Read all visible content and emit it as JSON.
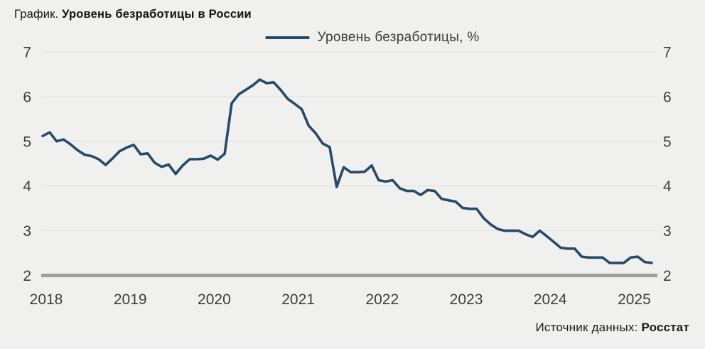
{
  "title": {
    "prefix": "График.",
    "main": "Уровень безработицы в России"
  },
  "legend": {
    "label": "Уровень безработицы, %"
  },
  "source": {
    "prefix": "Источник данных:",
    "name": "Росстат"
  },
  "colors": {
    "background": "#f0f0ee",
    "line": "#264a68",
    "grid": "#e3e3e0",
    "baseline": "#9e9e9e",
    "tick_text": "#3d3d3d",
    "title_text": "#121212"
  },
  "chart_data": {
    "type": "line",
    "title": "Уровень безработицы в России",
    "xlabel": "",
    "ylabel": "",
    "ylim": [
      2,
      7
    ],
    "y_ticks": [
      2,
      3,
      4,
      5,
      6,
      7
    ],
    "y_ticks_both_sides": true,
    "grid": "horizontal",
    "legend_position": "top-center",
    "x_tick_labels": [
      "2018",
      "2019",
      "2020",
      "2021",
      "2022",
      "2023",
      "2024",
      "2025"
    ],
    "x_start": "2018-01",
    "x_end": "2025-04",
    "x_frequency": "monthly",
    "series": [
      {
        "name": "Уровень безработицы, %",
        "values": [
          5.12,
          5.2,
          5.0,
          5.04,
          4.93,
          4.8,
          4.7,
          4.67,
          4.6,
          4.47,
          4.62,
          4.78,
          4.86,
          4.92,
          4.71,
          4.73,
          4.52,
          4.43,
          4.48,
          4.27,
          4.46,
          4.6,
          4.6,
          4.61,
          4.68,
          4.59,
          4.72,
          5.85,
          6.05,
          6.15,
          6.25,
          6.38,
          6.3,
          6.32,
          6.15,
          5.95,
          5.84,
          5.72,
          5.35,
          5.18,
          4.95,
          4.87,
          3.98,
          4.42,
          4.31,
          4.31,
          4.32,
          4.46,
          4.13,
          4.1,
          4.13,
          3.95,
          3.89,
          3.89,
          3.8,
          3.91,
          3.89,
          3.71,
          3.68,
          3.65,
          3.51,
          3.49,
          3.49,
          3.28,
          3.14,
          3.04,
          3.0,
          3.0,
          3.0,
          2.92,
          2.86,
          3.0,
          2.88,
          2.75,
          2.62,
          2.6,
          2.6,
          2.42,
          2.4,
          2.4,
          2.4,
          2.28,
          2.28,
          2.28,
          2.4,
          2.42,
          2.3,
          2.28
        ]
      }
    ]
  }
}
